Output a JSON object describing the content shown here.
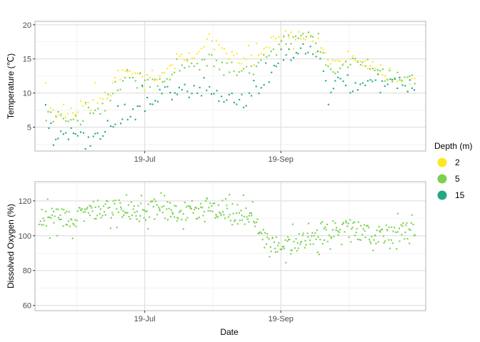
{
  "chart_data": [
    {
      "type": "scatter",
      "ylabel": "Temperature (℃)",
      "xlabel": "",
      "x_range": [
        "2019-05-30",
        "2019-11-24"
      ],
      "ylim": [
        1.5,
        20.5
      ],
      "y_ticks": [
        5,
        10,
        15,
        20
      ],
      "x_ticks": [
        {
          "date": "2019-07-19",
          "label": "19-Jul"
        },
        {
          "date": "2019-09-19",
          "label": "19-Sep"
        }
      ],
      "grid": true,
      "series": [
        {
          "name": "2",
          "color": "#FDE725",
          "trend": [
            [
              "2019-06-04",
              6.8
            ],
            [
              "2019-06-10",
              7.0
            ],
            [
              "2019-06-18",
              7.5
            ],
            [
              "2019-06-24",
              9.0
            ],
            [
              "2019-07-02",
              10.0
            ],
            [
              "2019-07-10",
              13.0
            ],
            [
              "2019-07-18",
              12.5
            ],
            [
              "2019-07-26",
              12.5
            ],
            [
              "2019-08-04",
              14.5
            ],
            [
              "2019-08-12",
              16.5
            ],
            [
              "2019-08-18",
              18.5
            ],
            [
              "2019-08-24",
              16.0
            ],
            [
              "2019-09-01",
              14.5
            ],
            [
              "2019-09-07",
              15.0
            ],
            [
              "2019-09-13",
              17.0
            ],
            [
              "2019-09-19",
              18.5
            ],
            [
              "2019-09-25",
              18.0
            ],
            [
              "2019-10-01",
              18.5
            ],
            [
              "2019-10-06",
              17.5
            ],
            [
              "2019-10-10",
              15.0
            ],
            [
              "2019-10-15",
              14.0
            ],
            [
              "2019-10-22",
              14.5
            ],
            [
              "2019-10-30",
              14.5
            ],
            [
              "2019-11-05",
              12.8
            ],
            [
              "2019-11-12",
              12.3
            ],
            [
              "2019-11-19",
              11.9
            ]
          ]
        },
        {
          "name": "5",
          "color": "#7AD151",
          "trend": [
            [
              "2019-06-04",
              6.3
            ],
            [
              "2019-06-10",
              6.5
            ],
            [
              "2019-06-18",
              6.0
            ],
            [
              "2019-06-24",
              7.0
            ],
            [
              "2019-07-02",
              8.0
            ],
            [
              "2019-07-10",
              11.5
            ],
            [
              "2019-07-18",
              11.0
            ],
            [
              "2019-07-26",
              11.5
            ],
            [
              "2019-08-04",
              13.0
            ],
            [
              "2019-08-12",
              14.0
            ],
            [
              "2019-08-18",
              15.0
            ],
            [
              "2019-08-24",
              14.0
            ],
            [
              "2019-09-01",
              13.0
            ],
            [
              "2019-09-07",
              13.5
            ],
            [
              "2019-09-13",
              15.5
            ],
            [
              "2019-09-19",
              17.5
            ],
            [
              "2019-09-25",
              18.0
            ],
            [
              "2019-10-01",
              19.0
            ],
            [
              "2019-10-06",
              18.0
            ],
            [
              "2019-10-10",
              13.5
            ],
            [
              "2019-10-15",
              14.0
            ],
            [
              "2019-10-22",
              14.5
            ],
            [
              "2019-10-30",
              14.2
            ],
            [
              "2019-11-05",
              12.5
            ],
            [
              "2019-11-12",
              12.2
            ],
            [
              "2019-11-19",
              11.8
            ]
          ]
        },
        {
          "name": "15",
          "color": "#22A884",
          "trend": [
            [
              "2019-06-04",
              4.5
            ],
            [
              "2019-06-10",
              4.2
            ],
            [
              "2019-06-16",
              3.5
            ],
            [
              "2019-06-22",
              3.0
            ],
            [
              "2019-06-30",
              4.0
            ],
            [
              "2019-07-08",
              6.5
            ],
            [
              "2019-07-18",
              8.5
            ],
            [
              "2019-07-26",
              9.5
            ],
            [
              "2019-08-04",
              10.0
            ],
            [
              "2019-08-12",
              10.5
            ],
            [
              "2019-08-18",
              11.0
            ],
            [
              "2019-08-24",
              9.5
            ],
            [
              "2019-09-01",
              9.0
            ],
            [
              "2019-09-07",
              9.5
            ],
            [
              "2019-09-13",
              12.0
            ],
            [
              "2019-09-19",
              15.0
            ],
            [
              "2019-09-25",
              16.0
            ],
            [
              "2019-10-01",
              16.5
            ],
            [
              "2019-10-06",
              15.5
            ],
            [
              "2019-10-10",
              11.0
            ],
            [
              "2019-10-15",
              11.5
            ],
            [
              "2019-10-22",
              11.5
            ],
            [
              "2019-10-30",
              11.5
            ],
            [
              "2019-11-05",
              11.3
            ],
            [
              "2019-11-12",
              11.0
            ],
            [
              "2019-11-19",
              10.8
            ]
          ]
        }
      ]
    },
    {
      "type": "scatter",
      "ylabel": "Dissolved Oxygen (%)",
      "xlabel": "Date",
      "x_range": [
        "2019-05-30",
        "2019-11-24"
      ],
      "ylim": [
        57,
        131
      ],
      "y_ticks": [
        60,
        80,
        100,
        120
      ],
      "x_ticks": [
        {
          "date": "2019-07-19",
          "label": "19-Jul"
        },
        {
          "date": "2019-09-19",
          "label": "19-Sep"
        }
      ],
      "grid": true,
      "series": [
        {
          "name": "5",
          "color": "#7AD151",
          "trend": [
            [
              "2019-06-01",
              102
            ],
            [
              "2019-06-02",
              110
            ],
            [
              "2019-06-10",
              111
            ],
            [
              "2019-06-16",
              109
            ],
            [
              "2019-06-24",
              115
            ],
            [
              "2019-07-02",
              115
            ],
            [
              "2019-07-10",
              116
            ],
            [
              "2019-07-18",
              113
            ],
            [
              "2019-07-26",
              116
            ],
            [
              "2019-08-04",
              112
            ],
            [
              "2019-08-12",
              115
            ],
            [
              "2019-08-18",
              117
            ],
            [
              "2019-08-24",
              115
            ],
            [
              "2019-09-01",
              112
            ],
            [
              "2019-09-07",
              110
            ],
            [
              "2019-09-13",
              95
            ],
            [
              "2019-09-19",
              93
            ],
            [
              "2019-09-25",
              95
            ],
            [
              "2019-10-01",
              98
            ],
            [
              "2019-10-08",
              100
            ],
            [
              "2019-10-15",
              106
            ],
            [
              "2019-10-22",
              104
            ],
            [
              "2019-10-30",
              101
            ],
            [
              "2019-11-05",
              100
            ],
            [
              "2019-11-12",
              102
            ],
            [
              "2019-11-19",
              102
            ]
          ]
        }
      ]
    }
  ],
  "legend": {
    "title": "Depth (m)",
    "items": [
      {
        "label": "2",
        "color": "#FDE725"
      },
      {
        "label": "5",
        "color": "#7AD151"
      },
      {
        "label": "15",
        "color": "#22A884"
      }
    ]
  }
}
